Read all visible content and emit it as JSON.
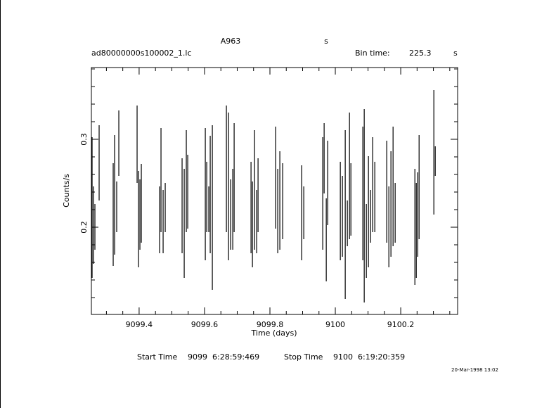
{
  "chart_data": {
    "type": "errorbar",
    "title": "A963",
    "title_unit": "s",
    "file_name": "ad80000000s100002_1.lc",
    "bin_time_label": "Bin time:",
    "bin_time": "225.3",
    "bin_time_unit": "s",
    "x_label": "Time (days)",
    "y_label": "Counts/s",
    "start_label": "Start Time",
    "start_day": "9099",
    "start_time": "6:28:59:469",
    "stop_label": "Stop Time",
    "stop_day": "9100",
    "stop_time": "6:19:20:359",
    "date_stamp": "20-Mar-1998 13:02",
    "color": "#000000",
    "xlim": [
      9099.254,
      9100.374
    ],
    "ylim": [
      0.1008,
      0.3816
    ],
    "xticks": [
      9099.4,
      9099.6,
      9099.8,
      9100,
      9100.2
    ],
    "xminorticks": [
      9099.3,
      9099.35,
      9099.45,
      9099.5,
      9099.55,
      9099.65,
      9099.7,
      9099.75,
      9099.85,
      9099.9,
      9099.95,
      9100.05,
      9100.1,
      9100.15,
      9100.25,
      9100.3,
      9100.35
    ],
    "yticks": [
      0.2,
      0.3
    ],
    "yminorticks": [
      0.12,
      0.14,
      0.16,
      0.18,
      0.22,
      0.24,
      0.26,
      0.28,
      0.32,
      0.34,
      0.36,
      0.38
    ],
    "x": [
      9099.2562,
      9099.2605,
      9099.2648,
      9099.2777,
      9099.3207,
      9099.325,
      9099.3314,
      9099.3379,
      9099.3938,
      9099.3981,
      9099.4024,
      9099.4067,
      9099.4626,
      9099.4669,
      9099.4734,
      9099.4798,
      9099.5314,
      9099.5379,
      9099.5443,
      9099.5486,
      9099.6024,
      9099.6067,
      9099.6131,
      9099.6174,
      9099.6239,
      9099.6669,
      9099.6734,
      9099.6798,
      9099.6863,
      9099.6906,
      9099.7422,
      9099.7465,
      9099.7529,
      9099.7594,
      9099.7637,
      9099.8174,
      9099.8239,
      9099.8303,
      9099.839,
      9099.897,
      9099.9035,
      9099.9615,
      9099.9658,
      9099.9723,
      9099.9766,
      9100.0153,
      9100.0217,
      9100.0303,
      9100.0368,
      9100.0433,
      9100.0476,
      9100.0841,
      9100.0884,
      9100.0949,
      9100.1013,
      9100.1078,
      9100.1142,
      9100.1207,
      9100.1572,
      9100.1637,
      9100.1701,
      9100.1766,
      9100.183,
      9100.2433,
      9100.2476,
      9100.2519,
      9100.2562,
      9100.3013,
      9100.3056
    ],
    "values": [
      0.2224,
      0.2024,
      0.2004,
      0.2732,
      0.2144,
      0.2368,
      0.2232,
      0.2956,
      0.2944,
      0.2092,
      0.2144,
      0.2272,
      0.2084,
      0.2536,
      0.2064,
      0.2224,
      0.2244,
      0.2044,
      0.2524,
      0.2404,
      0.2376,
      0.2344,
      0.2204,
      0.2372,
      0.2224,
      0.2664,
      0.2464,
      0.2144,
      0.2204,
      0.2564,
      0.2224,
      0.2032,
      0.2424,
      0.2064,
      0.2364,
      0.2564,
      0.2184,
      0.2304,
      0.2296,
      0.2164,
      0.2164,
      0.2384,
      0.2784,
      0.1856,
      0.2504,
      0.2184,
      0.2124,
      0.2144,
      0.2044,
      0.2584,
      0.2316,
      0.2384,
      0.2244,
      0.1844,
      0.2176,
      0.2124,
      0.2484,
      0.2344,
      0.2404,
      0.2004,
      0.2264,
      0.2464,
      0.2164,
      0.2004,
      0.1964,
      0.2144,
      0.2456,
      0.2852,
      0.2752
    ],
    "errors": [
      0.08,
      0.044,
      0.026,
      0.0428,
      0.0584,
      0.068,
      0.0288,
      0.0372,
      0.044,
      0.0548,
      0.04,
      0.0448,
      0.038,
      0.0592,
      0.036,
      0.028,
      0.054,
      0.062,
      0.058,
      0.042,
      0.0752,
      0.04,
      0.026,
      0.0668,
      0.0936,
      0.072,
      0.084,
      0.04,
      0.046,
      0.062,
      0.052,
      0.0488,
      0.068,
      0.036,
      0.042,
      0.058,
      0.048,
      0.056,
      0.0432,
      0.054,
      0.03,
      0.064,
      0.04,
      0.0472,
      0.048,
      0.056,
      0.046,
      0.096,
      0.026,
      0.072,
      0.0412,
      0.076,
      0.11,
      0.042,
      0.0632,
      0.03,
      0.054,
      0.04,
      0.058,
      0.046,
      0.06,
      0.068,
      0.034,
      0.066,
      0.054,
      0.048,
      0.0592,
      0.0708,
      0.0168
    ]
  }
}
